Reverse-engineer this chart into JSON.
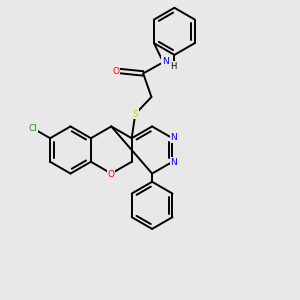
{
  "bg_color": "#e8e8e8",
  "atom_colors": {
    "O": "#ff0000",
    "N": "#0000ff",
    "S": "#cccc00",
    "Cl": "#00aa00",
    "C": "#000000",
    "H": "#000000"
  }
}
